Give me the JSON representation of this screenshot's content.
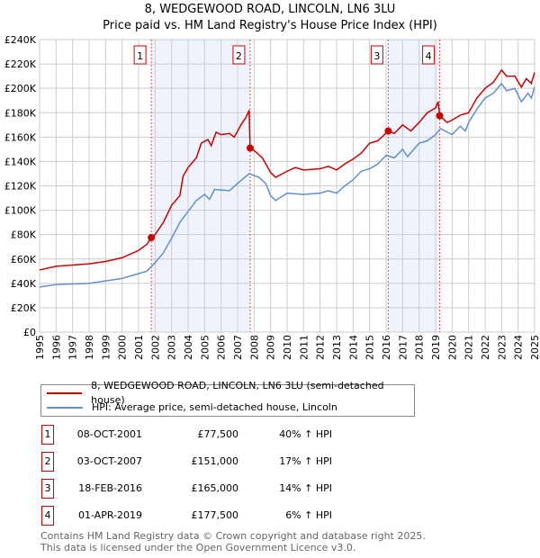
{
  "chart_data": {
    "type": "line",
    "title": "8, WEDGEWOOD ROAD, LINCOLN, LN6 3LU",
    "subtitle": "Price paid vs. HM Land Registry's House Price Index (HPI)",
    "xlim": [
      1995,
      2025
    ],
    "ylim": [
      0,
      240000
    ],
    "y_ticks": [
      "£0",
      "£20K",
      "£40K",
      "£60K",
      "£80K",
      "£100K",
      "£120K",
      "£140K",
      "£160K",
      "£180K",
      "£200K",
      "£220K",
      "£240K"
    ],
    "x_ticks": [
      "1995",
      "1996",
      "1997",
      "1998",
      "1999",
      "2000",
      "2001",
      "2002",
      "2003",
      "2004",
      "2005",
      "2006",
      "2007",
      "2008",
      "2009",
      "2010",
      "2011",
      "2012",
      "2013",
      "2014",
      "2015",
      "2016",
      "2017",
      "2018",
      "2019",
      "2020",
      "2021",
      "2022",
      "2023",
      "2024",
      "2025"
    ],
    "grid": true,
    "legend_placement": "below",
    "series": [
      {
        "name": "8, WEDGEWOOD ROAD, LINCOLN, LN6 3LU (semi-detached house)",
        "color": "#cc0000",
        "x": [
          1995,
          1996,
          1997,
          1998,
          1999,
          2000,
          2000.5,
          2001,
          2001.5,
          2001.77,
          2002,
          2002.5,
          2003,
          2003.5,
          2003.7,
          2004,
          2004.5,
          2004.8,
          2005.2,
          2005.4,
          2005.7,
          2006,
          2006.5,
          2006.8,
          2007.2,
          2007.5,
          2007.7,
          2007.76,
          2008,
          2008.5,
          2009,
          2009.3,
          2010,
          2010.5,
          2011,
          2012,
          2012.5,
          2013,
          2013.5,
          2014,
          2014.5,
          2015,
          2015.5,
          2016.13,
          2016.5,
          2017,
          2017.5,
          2018,
          2018.5,
          2019,
          2019.15,
          2019.25,
          2019.7,
          2020,
          2020.5,
          2021,
          2021.5,
          2022,
          2022.5,
          2023,
          2023.3,
          2023.8,
          2024.2,
          2024.5,
          2024.8,
          2025
        ],
        "y": [
          51000,
          54000,
          55000,
          56000,
          58000,
          61000,
          64000,
          67000,
          72000,
          77500,
          80000,
          90000,
          104000,
          112000,
          128000,
          135000,
          143000,
          155000,
          158000,
          153000,
          164000,
          162000,
          163000,
          160000,
          170000,
          176000,
          182000,
          151000,
          149000,
          143000,
          131000,
          127000,
          132000,
          135000,
          133000,
          134000,
          136000,
          133000,
          138000,
          142000,
          147000,
          155000,
          157000,
          165000,
          163000,
          170000,
          165000,
          172000,
          180000,
          184000,
          189000,
          177500,
          172000,
          174000,
          178000,
          180000,
          192000,
          200000,
          205000,
          215000,
          210000,
          210000,
          201000,
          208000,
          204000,
          213000
        ]
      },
      {
        "name": "HPI: Average price, semi-detached house, Lincoln",
        "color": "#6090d0",
        "x": [
          1995,
          1996,
          1997,
          1998,
          1999,
          2000,
          2001,
          2001.5,
          2002,
          2002.5,
          2003,
          2003.5,
          2004,
          2004.5,
          2005,
          2005.3,
          2005.6,
          2006.5,
          2007,
          2007.7,
          2008.3,
          2008.7,
          2009,
          2009.3,
          2010,
          2011,
          2012,
          2012.5,
          2013,
          2013.5,
          2014,
          2014.5,
          2015,
          2015.5,
          2016,
          2016.5,
          2017,
          2017.3,
          2018,
          2018.5,
          2019,
          2019.3,
          2020,
          2020.5,
          2020.8,
          2021,
          2021.5,
          2022,
          2022.5,
          2023,
          2023.3,
          2023.8,
          2024.2,
          2024.6,
          2024.8,
          2025
        ],
        "y": [
          37000,
          39000,
          39500,
          40000,
          42000,
          44000,
          48000,
          50000,
          57000,
          65000,
          77000,
          90000,
          99000,
          108000,
          113000,
          109000,
          117000,
          116000,
          122000,
          130000,
          127000,
          122000,
          112000,
          108000,
          114000,
          113000,
          114000,
          116000,
          114000,
          120000,
          125000,
          132000,
          134000,
          138000,
          145000,
          143000,
          150000,
          144000,
          155000,
          157000,
          162000,
          167000,
          162000,
          169000,
          165000,
          172000,
          183000,
          192000,
          196000,
          204000,
          198000,
          200000,
          189000,
          196000,
          192000,
          201000
        ]
      }
    ],
    "sales": [
      {
        "label": "1",
        "date": "08-OCT-2001",
        "x": 2001.77,
        "price_value": 77500,
        "price": "£77,500",
        "hpi": "40% ↑ HPI"
      },
      {
        "label": "2",
        "date": "03-OCT-2007",
        "x": 2007.76,
        "price_value": 151000,
        "price": "£151,000",
        "hpi": "17% ↑ HPI"
      },
      {
        "label": "3",
        "date": "18-FEB-2016",
        "x": 2016.13,
        "price_value": 165000,
        "price": "£165,000",
        "hpi": "14% ↑ HPI"
      },
      {
        "label": "4",
        "date": "01-APR-2019",
        "x": 2019.25,
        "price_value": 177500,
        "price": "£177,500",
        "hpi": "6% ↑ HPI"
      }
    ],
    "shaded_ranges": [
      [
        2001.77,
        2007.76
      ],
      [
        2016.13,
        2019.25
      ]
    ]
  },
  "footer": {
    "line1": "Contains HM Land Registry data © Crown copyright and database right 2025.",
    "line2": "This data is licensed under the Open Government Licence v3.0."
  }
}
